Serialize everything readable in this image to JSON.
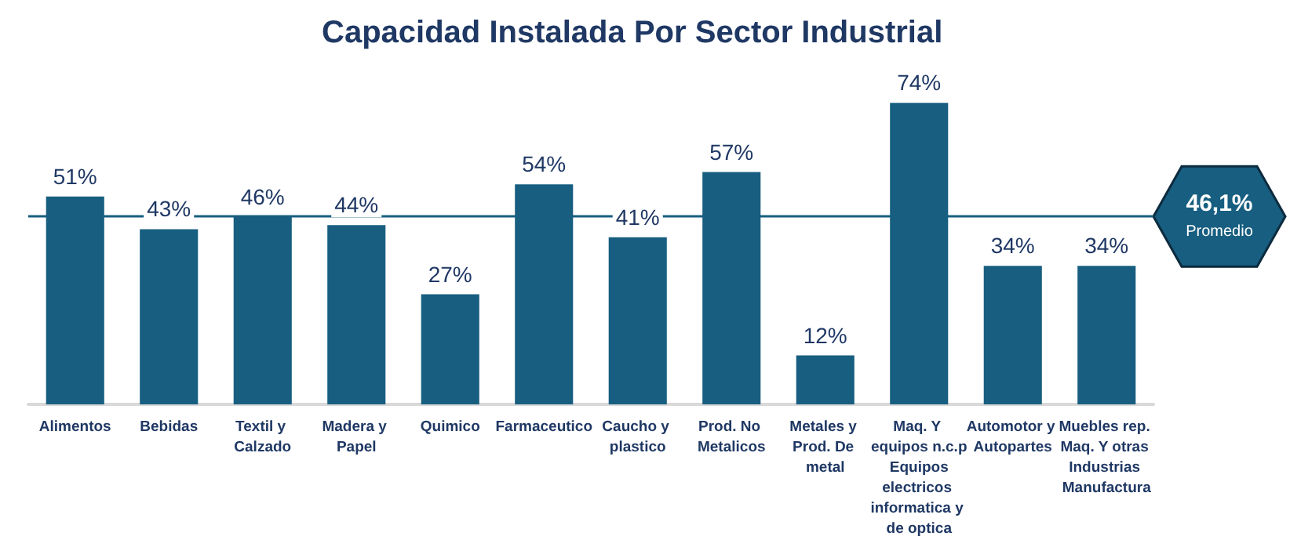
{
  "chart_data": {
    "type": "bar",
    "title": "Capacidad Instalada Por Sector Industrial",
    "categories": [
      "Alimentos",
      "Bebidas",
      "Textil y Calzado",
      "Madera y Papel",
      "Quimico",
      "Farmaceutico",
      "Caucho y plastico",
      "Prod. No Metalicos",
      "Metales y Prod. De metal",
      "Maq. Y equipos n.c.p Equipos electricos informatica y de optica",
      "Automotor y Autopartes",
      "Muebles rep. Maq. Y otras Industrias Manufactura"
    ],
    "values": [
      51,
      43,
      46,
      44,
      27,
      54,
      41,
      57,
      12,
      74,
      34,
      34
    ],
    "value_labels": [
      "51%",
      "43%",
      "46%",
      "44%",
      "27%",
      "54%",
      "41%",
      "57%",
      "12%",
      "74%",
      "34%",
      "34%"
    ],
    "color": "#175e80",
    "ref_lines": [
      {
        "axis": "y",
        "value": 46.1,
        "label": "46,1%",
        "color": "#175e80"
      }
    ],
    "annotations": [
      "Promedio"
    ],
    "grid": false
  }
}
